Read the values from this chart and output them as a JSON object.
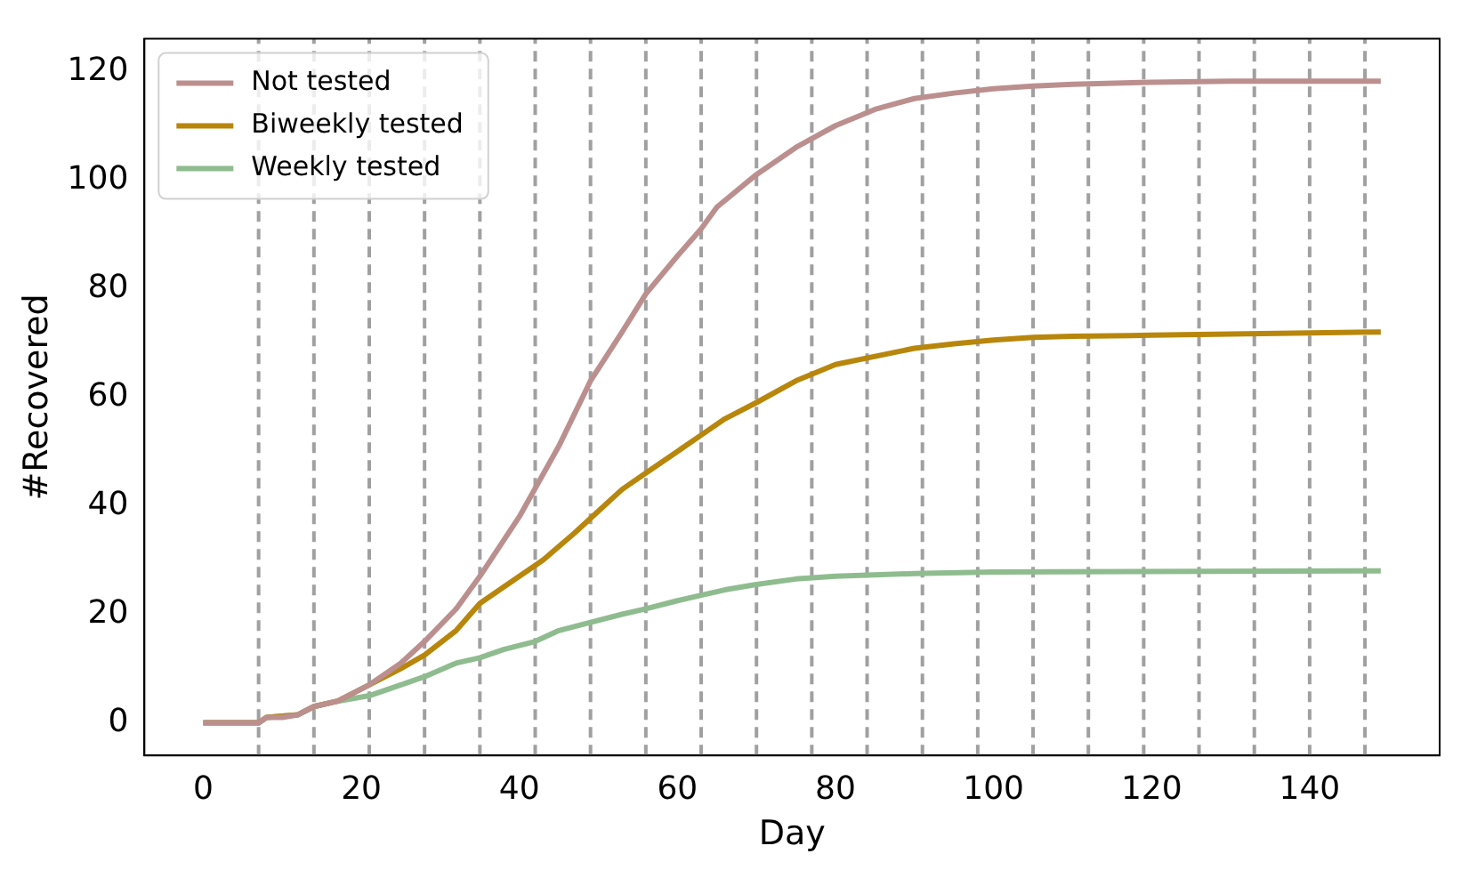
{
  "chart_data": {
    "type": "line",
    "xlabel": "Day",
    "ylabel": "#Recovered",
    "xlim": [
      -7.45,
      156.45
    ],
    "ylim": [
      -6,
      126
    ],
    "xticks": [
      0,
      20,
      40,
      60,
      80,
      100,
      120,
      140
    ],
    "yticks": [
      0,
      20,
      40,
      60,
      80,
      100,
      120
    ],
    "grid": false,
    "legend": "top left",
    "marker": "none",
    "line_style": "solid",
    "series": [
      {
        "name": "Not tested",
        "color": "#bc8f8f",
        "x": [
          0,
          7,
          8,
          10,
          12,
          14,
          17,
          21,
          25,
          28,
          32,
          35,
          40,
          45,
          49,
          53,
          56,
          60,
          63,
          65,
          70,
          75,
          80,
          85,
          90,
          95,
          100,
          105,
          110,
          120,
          130,
          149
        ],
        "values": [
          0,
          0,
          1,
          1,
          1.5,
          3,
          4,
          7,
          11,
          15,
          21,
          27,
          38,
          51,
          63,
          72,
          79,
          86,
          91,
          95,
          101,
          106,
          110,
          113,
          115,
          116,
          116.8,
          117.3,
          117.6,
          118,
          118.2,
          118.2
        ]
      },
      {
        "name": "Biweekly tested",
        "color": "#b8860b",
        "x": [
          0,
          7,
          8,
          12,
          14,
          17,
          21,
          25,
          28,
          32,
          35,
          40,
          43,
          47,
          50,
          53,
          56,
          60,
          63,
          66,
          70,
          75,
          80,
          85,
          90,
          95,
          100,
          105,
          110,
          120,
          130,
          149
        ],
        "values": [
          0,
          0,
          1,
          1.5,
          3,
          4,
          7,
          10,
          12.5,
          17,
          22,
          27,
          30,
          35,
          39,
          43,
          46,
          50,
          53,
          56,
          59,
          63,
          66,
          67.5,
          69,
          69.8,
          70.5,
          71,
          71.2,
          71.4,
          71.6,
          72
        ]
      },
      {
        "name": "Weekly tested",
        "color": "#8fbc8f",
        "x": [
          0,
          7,
          8,
          12,
          14,
          17,
          21,
          25,
          28,
          32,
          35,
          38,
          42,
          45,
          49,
          53,
          56,
          60,
          63,
          66,
          70,
          75,
          80,
          90,
          100,
          149
        ],
        "values": [
          0,
          0,
          1,
          1.5,
          3,
          4,
          5,
          7,
          8.5,
          11,
          12,
          13.5,
          15,
          17,
          18.5,
          20,
          21,
          22.5,
          23.5,
          24.5,
          25.5,
          26.5,
          27,
          27.5,
          27.8,
          28
        ]
      }
    ],
    "ref_lines": [
      {
        "axis": "x",
        "value": 7,
        "color": "#a0a0a0",
        "line_style": "dashed"
      },
      {
        "axis": "x",
        "value": 14,
        "color": "#a0a0a0",
        "line_style": "dashed"
      },
      {
        "axis": "x",
        "value": 21,
        "color": "#a0a0a0",
        "line_style": "dashed"
      },
      {
        "axis": "x",
        "value": 28,
        "color": "#a0a0a0",
        "line_style": "dashed"
      },
      {
        "axis": "x",
        "value": 35,
        "color": "#a0a0a0",
        "line_style": "dashed"
      },
      {
        "axis": "x",
        "value": 42,
        "color": "#a0a0a0",
        "line_style": "dashed"
      },
      {
        "axis": "x",
        "value": 49,
        "color": "#a0a0a0",
        "line_style": "dashed"
      },
      {
        "axis": "x",
        "value": 56,
        "color": "#a0a0a0",
        "line_style": "dashed"
      },
      {
        "axis": "x",
        "value": 63,
        "color": "#a0a0a0",
        "line_style": "dashed"
      },
      {
        "axis": "x",
        "value": 70,
        "color": "#a0a0a0",
        "line_style": "dashed"
      },
      {
        "axis": "x",
        "value": 77,
        "color": "#a0a0a0",
        "line_style": "dashed"
      },
      {
        "axis": "x",
        "value": 84,
        "color": "#a0a0a0",
        "line_style": "dashed"
      },
      {
        "axis": "x",
        "value": 91,
        "color": "#a0a0a0",
        "line_style": "dashed"
      },
      {
        "axis": "x",
        "value": 98,
        "color": "#a0a0a0",
        "line_style": "dashed"
      },
      {
        "axis": "x",
        "value": 105,
        "color": "#a0a0a0",
        "line_style": "dashed"
      },
      {
        "axis": "x",
        "value": 112,
        "color": "#a0a0a0",
        "line_style": "dashed"
      },
      {
        "axis": "x",
        "value": 119,
        "color": "#a0a0a0",
        "line_style": "dashed"
      },
      {
        "axis": "x",
        "value": 126,
        "color": "#a0a0a0",
        "line_style": "dashed"
      },
      {
        "axis": "x",
        "value": 133,
        "color": "#a0a0a0",
        "line_style": "dashed"
      },
      {
        "axis": "x",
        "value": 140,
        "color": "#a0a0a0",
        "line_style": "dashed"
      },
      {
        "axis": "x",
        "value": 147,
        "color": "#a0a0a0",
        "line_style": "dashed"
      }
    ]
  }
}
